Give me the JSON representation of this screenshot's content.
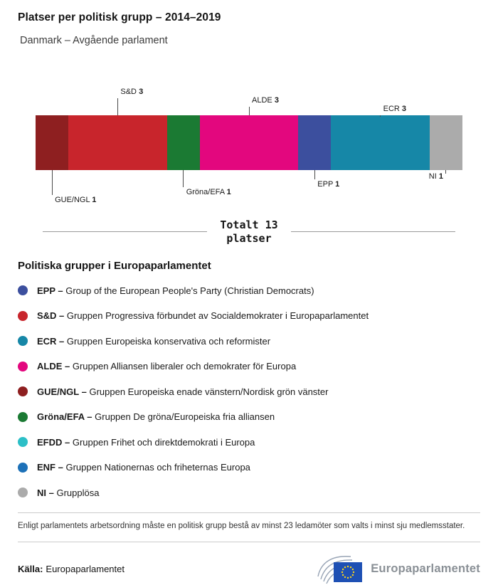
{
  "chart_data": {
    "type": "bar",
    "variant": "stacked-horizontal",
    "title": "Platser per politisk grupp – 2014–2019",
    "subtitle": "Danmark – Avgående parlament",
    "total": 13,
    "total_line1": "Totalt 13",
    "total_line2": "platser",
    "categories": [
      "GUE/NGL",
      "S&D",
      "Gröna/EFA",
      "ALDE",
      "EPP",
      "ECR",
      "NI"
    ],
    "values": [
      1,
      3,
      1,
      3,
      1,
      3,
      1
    ],
    "segments": [
      {
        "group": "GUE/NGL",
        "seats": 1,
        "color": "#8E1F20",
        "label_pos": "below"
      },
      {
        "group": "S&D",
        "seats": 3,
        "color": "#C8252C",
        "label_pos": "above"
      },
      {
        "group": "Gröna/EFA",
        "seats": 1,
        "color": "#1B7A33",
        "label_pos": "below"
      },
      {
        "group": "ALDE",
        "seats": 3,
        "color": "#E3077E",
        "label_pos": "above"
      },
      {
        "group": "EPP",
        "seats": 1,
        "color": "#3C4F9E",
        "label_pos": "below"
      },
      {
        "group": "ECR",
        "seats": 3,
        "color": "#1687A7",
        "label_pos": "above"
      },
      {
        "group": "NI",
        "seats": 1,
        "color": "#ABABAB",
        "label_pos": "below"
      }
    ]
  },
  "legend": {
    "heading": "Politiska grupper i Europaparlamentet",
    "items": [
      {
        "abbr": "EPP –",
        "desc": "Group of the European People's Party (Christian Democrats)",
        "color": "#3C4F9E"
      },
      {
        "abbr": "S&D –",
        "desc": "Gruppen Progressiva förbundet av Socialdemokrater i Europaparlamentet",
        "color": "#C8252C"
      },
      {
        "abbr": "ECR –",
        "desc": "Gruppen Europeiska konservativa och reformister",
        "color": "#1687A7"
      },
      {
        "abbr": "ALDE –",
        "desc": "Gruppen Alliansen liberaler och demokrater för Europa",
        "color": "#E3077E"
      },
      {
        "abbr": "GUE/NGL –",
        "desc": "Gruppen Europeiska enade vänstern/Nordisk grön vänster",
        "color": "#8E1F20"
      },
      {
        "abbr": "Gröna/EFA –",
        "desc": "Gruppen De gröna/Europeiska fria alliansen",
        "color": "#1B7A33"
      },
      {
        "abbr": "EFDD –",
        "desc": "Gruppen Frihet och direktdemokrati i Europa",
        "color": "#2CBFC7"
      },
      {
        "abbr": "ENF –",
        "desc": "Gruppen Nationernas och friheternas Europa",
        "color": "#1D71B8"
      },
      {
        "abbr": "NI –",
        "desc": "Grupplösa",
        "color": "#ABABAB"
      }
    ]
  },
  "footer": {
    "footnote": "Enligt parlamentets arbetsordning måste en politisk grupp bestå av minst 23 ledamöter som valts i minst sju medlemsstater.",
    "source_label": "Källa:",
    "source_value": "Europaparlamentet",
    "logo_icon": "europarl-logo",
    "logo_text": "Europaparlamentet"
  }
}
